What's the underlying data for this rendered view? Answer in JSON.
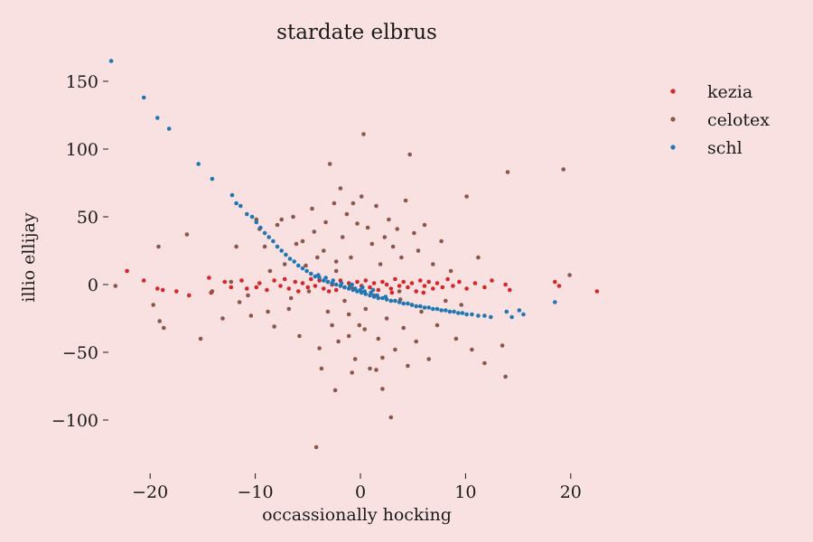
{
  "chart_data": {
    "type": "scatter",
    "title": "stardate elbrus",
    "xlabel": "occassionally hocking",
    "ylabel": "illio ellijay",
    "xlim": [
      -25,
      25
    ],
    "ylim": [
      -130,
      170
    ],
    "xticks": [
      -20,
      -10,
      0,
      10,
      20
    ],
    "xtick_labels": [
      "−20",
      "−10",
      "0",
      "10",
      "20"
    ],
    "yticks": [
      150,
      100,
      50,
      0,
      -50,
      -100
    ],
    "ytick_labels": [
      "150",
      "100",
      "50",
      "0",
      "−50",
      "−100"
    ],
    "grid": false,
    "legend_position": "top-right",
    "series": [
      {
        "name": "kezia",
        "color": "#d62728",
        "points": [
          [
            -22.2,
            10
          ],
          [
            -20.6,
            3
          ],
          [
            -19.3,
            -3
          ],
          [
            -18.8,
            -4
          ],
          [
            -16.3,
            -8
          ],
          [
            -14.4,
            5
          ],
          [
            -14.2,
            -6
          ],
          [
            -12.9,
            2
          ],
          [
            -12.3,
            -2
          ],
          [
            -11.3,
            3
          ],
          [
            -10.8,
            -3
          ],
          [
            -9.6,
            1
          ],
          [
            -8.9,
            -4
          ],
          [
            -8.2,
            3
          ],
          [
            -7.6,
            -1
          ],
          [
            -7.2,
            4
          ],
          [
            -6.8,
            -3
          ],
          [
            -6.2,
            2
          ],
          [
            -5.9,
            -5
          ],
          [
            -5.5,
            1
          ],
          [
            -5.0,
            -2
          ],
          [
            -4.7,
            4
          ],
          [
            -4.3,
            -1
          ],
          [
            -3.9,
            3
          ],
          [
            -3.5,
            -3
          ],
          [
            -3.1,
            2
          ],
          [
            -2.7,
            0
          ],
          [
            -2.3,
            -4
          ],
          [
            -1.9,
            3
          ],
          [
            -1.5,
            -2
          ],
          [
            -1.1,
            1
          ],
          [
            -0.7,
            -3
          ],
          [
            -0.3,
            2
          ],
          [
            0.1,
            -1
          ],
          [
            0.5,
            3
          ],
          [
            0.9,
            -2
          ],
          [
            1.3,
            1
          ],
          [
            1.7,
            -4
          ],
          [
            2.1,
            2
          ],
          [
            2.5,
            0
          ],
          [
            2.9,
            -3
          ],
          [
            3.3,
            4
          ],
          [
            3.7,
            -1
          ],
          [
            4.1,
            2
          ],
          [
            4.5,
            -2
          ],
          [
            4.9,
            1
          ],
          [
            5.3,
            -5
          ],
          [
            5.7,
            3
          ],
          [
            6.1,
            -1
          ],
          [
            6.5,
            2
          ],
          [
            6.9,
            -3
          ],
          [
            7.3,
            1
          ],
          [
            7.8,
            -2
          ],
          [
            8.3,
            4
          ],
          [
            8.8,
            -1
          ],
          [
            9.4,
            2
          ],
          [
            10.1,
            -3
          ],
          [
            10.9,
            1
          ],
          [
            11.8,
            -2
          ],
          [
            12.5,
            3
          ],
          [
            13.8,
            0
          ],
          [
            14.2,
            -4
          ],
          [
            18.5,
            2
          ],
          [
            18.9,
            -1
          ],
          [
            22.5,
            -5
          ],
          [
            -17.5,
            -5
          ],
          [
            -9.9,
            -2
          ],
          [
            -3.0,
            -5
          ],
          [
            3.0,
            -6
          ],
          [
            6.0,
            -6
          ]
        ]
      },
      {
        "name": "celotex",
        "color": "#8c564b",
        "points": [
          [
            -23.3,
            -1
          ],
          [
            -19.7,
            -15
          ],
          [
            -19.1,
            -27
          ],
          [
            -18.7,
            -32
          ],
          [
            -19.2,
            28
          ],
          [
            -16.5,
            37
          ],
          [
            -15.2,
            -40
          ],
          [
            -14.1,
            -5
          ],
          [
            -13.1,
            -25
          ],
          [
            -12.3,
            2
          ],
          [
            -11.5,
            -13
          ],
          [
            -11.8,
            28
          ],
          [
            -10.4,
            -23
          ],
          [
            -9.9,
            48
          ],
          [
            -9.6,
            41
          ],
          [
            -9.1,
            28
          ],
          [
            -8.6,
            10
          ],
          [
            -8.2,
            -31
          ],
          [
            -7.9,
            44
          ],
          [
            -7.5,
            48
          ],
          [
            -7.2,
            15
          ],
          [
            -6.8,
            -18
          ],
          [
            -6.4,
            50
          ],
          [
            -6.1,
            30
          ],
          [
            -5.8,
            -38
          ],
          [
            -5.5,
            32
          ],
          [
            -5.2,
            14
          ],
          [
            -4.9,
            -5
          ],
          [
            -4.6,
            56
          ],
          [
            -4.4,
            39
          ],
          [
            -4.1,
            20
          ],
          [
            -3.9,
            -47
          ],
          [
            -3.7,
            -62
          ],
          [
            -3.5,
            25
          ],
          [
            -3.3,
            46
          ],
          [
            -3.1,
            -20
          ],
          [
            -2.9,
            89
          ],
          [
            -2.7,
            -30
          ],
          [
            -2.5,
            60
          ],
          [
            -2.3,
            10
          ],
          [
            -2.1,
            -42
          ],
          [
            -1.9,
            71
          ],
          [
            -1.7,
            35
          ],
          [
            -1.5,
            -12
          ],
          [
            -1.3,
            52
          ],
          [
            -1.1,
            -38
          ],
          [
            -0.9,
            20
          ],
          [
            -0.7,
            60
          ],
          [
            -0.5,
            -55
          ],
          [
            -0.3,
            45
          ],
          [
            -0.1,
            -30
          ],
          [
            0.1,
            65
          ],
          [
            0.3,
            111
          ],
          [
            0.5,
            -18
          ],
          [
            0.7,
            42
          ],
          [
            0.9,
            -62
          ],
          [
            1.1,
            30
          ],
          [
            1.3,
            -8
          ],
          [
            1.5,
            58
          ],
          [
            1.7,
            -40
          ],
          [
            1.9,
            15
          ],
          [
            2.1,
            -54
          ],
          [
            2.3,
            35
          ],
          [
            2.5,
            -25
          ],
          [
            2.7,
            48
          ],
          [
            2.9,
            -98
          ],
          [
            3.1,
            28
          ],
          [
            3.3,
            -48
          ],
          [
            3.5,
            41
          ],
          [
            3.7,
            -5
          ],
          [
            3.9,
            20
          ],
          [
            4.1,
            -32
          ],
          [
            4.3,
            62
          ],
          [
            4.5,
            -60
          ],
          [
            4.7,
            96
          ],
          [
            4.9,
            -15
          ],
          [
            5.1,
            38
          ],
          [
            5.3,
            -42
          ],
          [
            5.5,
            25
          ],
          [
            5.8,
            -20
          ],
          [
            6.1,
            44
          ],
          [
            6.5,
            -55
          ],
          [
            6.9,
            15
          ],
          [
            7.3,
            -30
          ],
          [
            7.7,
            32
          ],
          [
            8.1,
            -12
          ],
          [
            8.6,
            10
          ],
          [
            9.1,
            -40
          ],
          [
            9.6,
            -15
          ],
          [
            10.1,
            65
          ],
          [
            10.6,
            -48
          ],
          [
            11.2,
            20
          ],
          [
            11.8,
            -58
          ],
          [
            13.5,
            -45
          ],
          [
            13.8,
            -68
          ],
          [
            14.0,
            83
          ],
          [
            19.3,
            85
          ],
          [
            19.9,
            7
          ],
          [
            -4.2,
            -120
          ],
          [
            -2.4,
            -78
          ],
          [
            2.1,
            -77
          ],
          [
            -0.8,
            -65
          ],
          [
            1.5,
            -63
          ],
          [
            -2.3,
            17
          ],
          [
            -1.1,
            -22
          ],
          [
            0.4,
            -33
          ],
          [
            3.8,
            -11
          ],
          [
            -6.6,
            -10
          ],
          [
            -8.8,
            -20
          ],
          [
            -10.7,
            -8
          ]
        ]
      },
      {
        "name": "schl",
        "color": "#1f77b4",
        "points": [
          [
            -23.7,
            165
          ],
          [
            -20.6,
            138
          ],
          [
            -19.3,
            123
          ],
          [
            -18.2,
            115
          ],
          [
            -15.4,
            89
          ],
          [
            -14.1,
            78
          ],
          [
            -12.2,
            66
          ],
          [
            -11.8,
            60
          ],
          [
            -11.4,
            58
          ],
          [
            -10.8,
            52
          ],
          [
            -10.3,
            50
          ],
          [
            -9.9,
            46
          ],
          [
            -9.5,
            42
          ],
          [
            -9.1,
            38
          ],
          [
            -8.7,
            35
          ],
          [
            -8.3,
            32
          ],
          [
            -7.9,
            28
          ],
          [
            -7.5,
            25
          ],
          [
            -7.1,
            22
          ],
          [
            -6.7,
            19
          ],
          [
            -6.3,
            17
          ],
          [
            -5.9,
            14
          ],
          [
            -5.5,
            12
          ],
          [
            -5.1,
            10
          ],
          [
            -4.7,
            8
          ],
          [
            -4.3,
            6
          ],
          [
            -3.9,
            5
          ],
          [
            -3.5,
            3
          ],
          [
            -3.1,
            2
          ],
          [
            -2.7,
            1
          ],
          [
            -2.3,
            0
          ],
          [
            -1.9,
            -1
          ],
          [
            -1.5,
            -2
          ],
          [
            -1.1,
            -3
          ],
          [
            -0.7,
            -4
          ],
          [
            -0.3,
            -5
          ],
          [
            0.1,
            -6
          ],
          [
            0.5,
            -7
          ],
          [
            0.9,
            -8
          ],
          [
            1.3,
            -9
          ],
          [
            1.7,
            -10
          ],
          [
            2.1,
            -10
          ],
          [
            2.5,
            -11
          ],
          [
            2.9,
            -12
          ],
          [
            3.3,
            -12
          ],
          [
            3.7,
            -13
          ],
          [
            4.1,
            -14
          ],
          [
            4.5,
            -14
          ],
          [
            4.9,
            -15
          ],
          [
            5.3,
            -16
          ],
          [
            5.7,
            -16
          ],
          [
            6.1,
            -17
          ],
          [
            6.5,
            -17
          ],
          [
            6.9,
            -18
          ],
          [
            7.3,
            -18
          ],
          [
            7.7,
            -19
          ],
          [
            8.1,
            -19
          ],
          [
            8.5,
            -20
          ],
          [
            8.9,
            -20
          ],
          [
            9.3,
            -21
          ],
          [
            9.7,
            -21
          ],
          [
            10.1,
            -22
          ],
          [
            10.6,
            -22
          ],
          [
            11.2,
            -23
          ],
          [
            11.8,
            -23
          ],
          [
            12.4,
            -24
          ],
          [
            13.9,
            -20
          ],
          [
            14.4,
            -24
          ],
          [
            15.1,
            -19
          ],
          [
            15.5,
            -22
          ],
          [
            18.5,
            -13
          ],
          [
            -1.0,
            -1
          ],
          [
            -0.5,
            -3
          ],
          [
            0.0,
            -4
          ],
          [
            0.4,
            -5
          ],
          [
            -1.8,
            1
          ],
          [
            -2.6,
            3
          ],
          [
            1.0,
            -6
          ],
          [
            1.6,
            -8
          ],
          [
            -3.3,
            5
          ],
          [
            -4.0,
            7
          ],
          [
            2.4,
            -9
          ],
          [
            0.2,
            -2
          ],
          [
            -0.8,
            0
          ],
          [
            1.2,
            -4
          ]
        ]
      }
    ]
  }
}
